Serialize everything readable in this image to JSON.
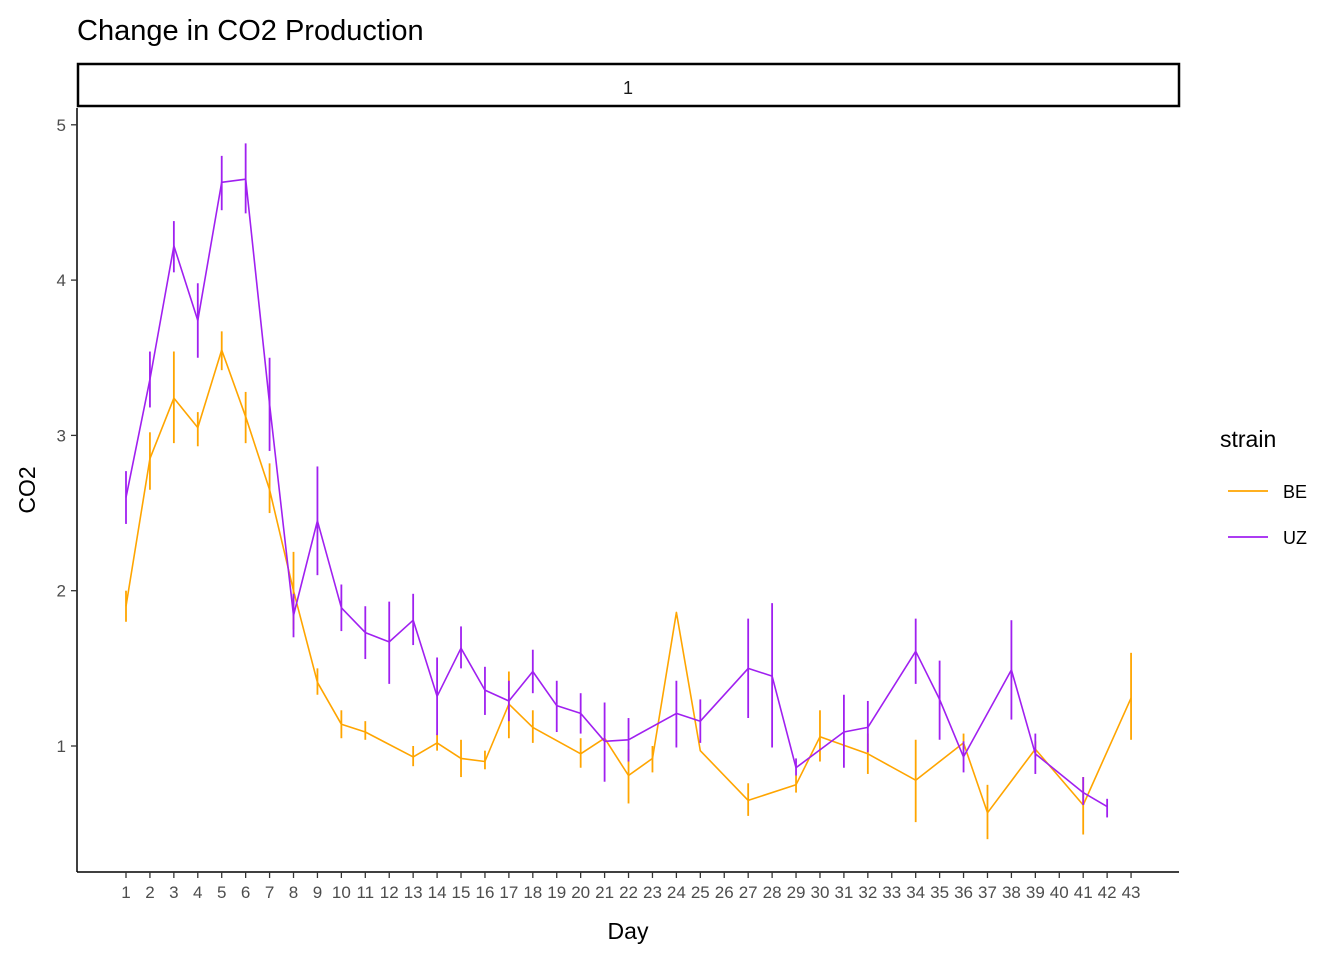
{
  "chart_data": {
    "type": "line",
    "title": "Change in CO2 Production",
    "facet_label": "1",
    "xlabel": "Day",
    "ylabel": "CO2",
    "x": [
      1,
      2,
      3,
      4,
      5,
      6,
      7,
      8,
      9,
      10,
      11,
      12,
      13,
      14,
      15,
      16,
      17,
      18,
      19,
      20,
      21,
      22,
      23,
      24,
      25,
      26,
      27,
      28,
      29,
      30,
      31,
      32,
      33,
      34,
      35,
      36,
      37,
      38,
      39,
      40,
      41,
      42,
      43
    ],
    "x_tick_labels": [
      "1",
      "2",
      "3",
      "4",
      "5",
      "6",
      "7",
      "8",
      "9",
      "10",
      "11",
      "12",
      "13",
      "14",
      "15",
      "16",
      "17",
      "18",
      "19",
      "20",
      "21",
      "22",
      "23",
      "24",
      "25",
      "26",
      "27",
      "28",
      "29",
      "30",
      "31",
      "32",
      "33",
      "34",
      "35",
      "36",
      "37",
      "38",
      "39",
      "40",
      "41",
      "42",
      "43"
    ],
    "y_ticks": [
      1,
      2,
      3,
      4,
      5
    ],
    "ylim": [
      0.18,
      5.1
    ],
    "grid": false,
    "legend": {
      "title": "strain",
      "position": "right"
    },
    "series": [
      {
        "name": "BE",
        "color": "#FFA500",
        "points": [
          {
            "x": 1,
            "y": 1.9,
            "lo": 1.8,
            "hi": 2.0
          },
          {
            "x": 2,
            "y": 2.85,
            "lo": 2.65,
            "hi": 3.02
          },
          {
            "x": 3,
            "y": 3.24,
            "lo": 2.95,
            "hi": 3.54
          },
          {
            "x": 4,
            "y": 3.05,
            "lo": 2.93,
            "hi": 3.15
          },
          {
            "x": 5,
            "y": 3.55,
            "lo": 3.42,
            "hi": 3.67
          },
          {
            "x": 6,
            "y": 3.12,
            "lo": 2.95,
            "hi": 3.28
          },
          {
            "x": 7,
            "y": 2.65,
            "lo": 2.5,
            "hi": 2.82
          },
          {
            "x": 8,
            "y": 2.0,
            "lo": 1.75,
            "hi": 2.25
          },
          {
            "x": 9,
            "y": 1.41,
            "lo": 1.33,
            "hi": 1.5
          },
          {
            "x": 10,
            "y": 1.14,
            "lo": 1.05,
            "hi": 1.23
          },
          {
            "x": 11,
            "y": 1.09,
            "lo": 1.04,
            "hi": 1.16
          },
          {
            "x": 13,
            "y": 0.93,
            "lo": 0.87,
            "hi": 1.0
          },
          {
            "x": 14,
            "y": 1.02,
            "lo": 0.97,
            "hi": 1.08
          },
          {
            "x": 15,
            "y": 0.92,
            "lo": 0.8,
            "hi": 1.04
          },
          {
            "x": 16,
            "y": 0.9,
            "lo": 0.85,
            "hi": 0.97
          },
          {
            "x": 17,
            "y": 1.27,
            "lo": 1.05,
            "hi": 1.48
          },
          {
            "x": 18,
            "y": 1.12,
            "lo": 1.02,
            "hi": 1.23
          },
          {
            "x": 20,
            "y": 0.95,
            "lo": 0.86,
            "hi": 1.05
          },
          {
            "x": 21,
            "y": 1.05,
            "lo": 1.05,
            "hi": 1.05
          },
          {
            "x": 22,
            "y": 0.81,
            "lo": 0.63,
            "hi": 0.98
          },
          {
            "x": 23,
            "y": 0.92,
            "lo": 0.83,
            "hi": 1.0
          },
          {
            "x": 24,
            "y": 1.86,
            "lo": 1.86,
            "hi": 1.86
          },
          {
            "x": 25,
            "y": 0.97,
            "lo": 0.97,
            "hi": 0.97
          },
          {
            "x": 27,
            "y": 0.65,
            "lo": 0.55,
            "hi": 0.76
          },
          {
            "x": 29,
            "y": 0.75,
            "lo": 0.7,
            "hi": 0.81
          },
          {
            "x": 30,
            "y": 1.06,
            "lo": 0.9,
            "hi": 1.23
          },
          {
            "x": 32,
            "y": 0.95,
            "lo": 0.82,
            "hi": 1.08
          },
          {
            "x": 34,
            "y": 0.78,
            "lo": 0.51,
            "hi": 1.04
          },
          {
            "x": 36,
            "y": 1.02,
            "lo": 0.97,
            "hi": 1.08
          },
          {
            "x": 37,
            "y": 0.57,
            "lo": 0.4,
            "hi": 0.75
          },
          {
            "x": 39,
            "y": 0.98,
            "lo": 0.93,
            "hi": 1.03
          },
          {
            "x": 41,
            "y": 0.62,
            "lo": 0.43,
            "hi": 0.8
          },
          {
            "x": 43,
            "y": 1.31,
            "lo": 1.04,
            "hi": 1.6
          }
        ]
      },
      {
        "name": "UZ",
        "color": "#A020F0",
        "points": [
          {
            "x": 1,
            "y": 2.6,
            "lo": 2.43,
            "hi": 2.77
          },
          {
            "x": 2,
            "y": 3.36,
            "lo": 3.18,
            "hi": 3.54
          },
          {
            "x": 3,
            "y": 4.22,
            "lo": 4.05,
            "hi": 4.38
          },
          {
            "x": 4,
            "y": 3.74,
            "lo": 3.5,
            "hi": 3.98
          },
          {
            "x": 5,
            "y": 4.63,
            "lo": 4.45,
            "hi": 4.8
          },
          {
            "x": 6,
            "y": 4.65,
            "lo": 4.43,
            "hi": 4.88
          },
          {
            "x": 7,
            "y": 3.2,
            "lo": 2.9,
            "hi": 3.5
          },
          {
            "x": 8,
            "y": 1.84,
            "lo": 1.7,
            "hi": 1.98
          },
          {
            "x": 9,
            "y": 2.45,
            "lo": 2.1,
            "hi": 2.8
          },
          {
            "x": 10,
            "y": 1.89,
            "lo": 1.74,
            "hi": 2.04
          },
          {
            "x": 11,
            "y": 1.73,
            "lo": 1.56,
            "hi": 1.9
          },
          {
            "x": 12,
            "y": 1.67,
            "lo": 1.4,
            "hi": 1.93
          },
          {
            "x": 13,
            "y": 1.81,
            "lo": 1.65,
            "hi": 1.98
          },
          {
            "x": 14,
            "y": 1.32,
            "lo": 1.07,
            "hi": 1.57
          },
          {
            "x": 15,
            "y": 1.63,
            "lo": 1.5,
            "hi": 1.77
          },
          {
            "x": 16,
            "y": 1.36,
            "lo": 1.2,
            "hi": 1.51
          },
          {
            "x": 17,
            "y": 1.29,
            "lo": 1.16,
            "hi": 1.42
          },
          {
            "x": 18,
            "y": 1.48,
            "lo": 1.34,
            "hi": 1.62
          },
          {
            "x": 19,
            "y": 1.26,
            "lo": 1.09,
            "hi": 1.42
          },
          {
            "x": 20,
            "y": 1.21,
            "lo": 1.08,
            "hi": 1.34
          },
          {
            "x": 21,
            "y": 1.03,
            "lo": 0.77,
            "hi": 1.28
          },
          {
            "x": 22,
            "y": 1.04,
            "lo": 0.9,
            "hi": 1.18
          },
          {
            "x": 24,
            "y": 1.21,
            "lo": 0.99,
            "hi": 1.42
          },
          {
            "x": 25,
            "y": 1.16,
            "lo": 1.02,
            "hi": 1.3
          },
          {
            "x": 27,
            "y": 1.5,
            "lo": 1.18,
            "hi": 1.82
          },
          {
            "x": 28,
            "y": 1.45,
            "lo": 0.99,
            "hi": 1.92
          },
          {
            "x": 29,
            "y": 0.86,
            "lo": 0.81,
            "hi": 0.92
          },
          {
            "x": 31,
            "y": 1.09,
            "lo": 0.86,
            "hi": 1.33
          },
          {
            "x": 32,
            "y": 1.12,
            "lo": 0.96,
            "hi": 1.29
          },
          {
            "x": 34,
            "y": 1.61,
            "lo": 1.4,
            "hi": 1.82
          },
          {
            "x": 35,
            "y": 1.3,
            "lo": 1.04,
            "hi": 1.55
          },
          {
            "x": 36,
            "y": 0.93,
            "lo": 0.83,
            "hi": 1.03
          },
          {
            "x": 38,
            "y": 1.49,
            "lo": 1.17,
            "hi": 1.81
          },
          {
            "x": 39,
            "y": 0.95,
            "lo": 0.82,
            "hi": 1.08
          },
          {
            "x": 41,
            "y": 0.7,
            "lo": 0.62,
            "hi": 0.8
          },
          {
            "x": 42,
            "y": 0.61,
            "lo": 0.54,
            "hi": 0.66
          }
        ]
      }
    ]
  }
}
